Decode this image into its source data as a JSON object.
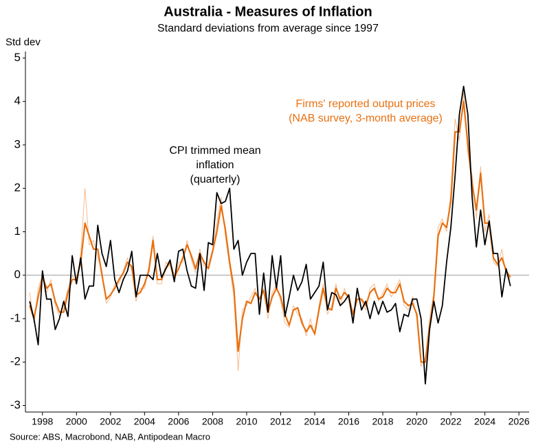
{
  "chart_data": {
    "type": "line",
    "title": "Australia - Measures of Inflation",
    "subtitle": "Standard deviations from average since 1997",
    "y_label": "Std dev",
    "source": "Source: ABS, Macrobond, NAB, Antipodean Macro",
    "xlim": [
      1997,
      2026.6
    ],
    "xticks": [
      1998,
      2000,
      2002,
      2004,
      2006,
      2008,
      2010,
      2012,
      2014,
      2016,
      2018,
      2020,
      2022,
      2024,
      2026
    ],
    "ylim": [
      -3.15,
      5.15
    ],
    "yticks": [
      -3,
      -2,
      -1,
      0,
      1,
      2,
      3,
      4,
      5
    ],
    "reference_line": 0,
    "x": [
      1997.25,
      1997.5,
      1997.75,
      1998,
      1998.25,
      1998.5,
      1998.75,
      1999,
      1999.25,
      1999.5,
      1999.75,
      2000,
      2000.25,
      2000.5,
      2000.75,
      2001,
      2001.25,
      2001.5,
      2001.75,
      2002,
      2002.25,
      2002.5,
      2002.75,
      2003,
      2003.25,
      2003.5,
      2003.75,
      2004,
      2004.25,
      2004.5,
      2004.75,
      2005,
      2005.25,
      2005.5,
      2005.75,
      2006,
      2006.25,
      2006.5,
      2006.75,
      2007,
      2007.25,
      2007.5,
      2007.75,
      2008,
      2008.25,
      2008.5,
      2008.75,
      2009,
      2009.25,
      2009.5,
      2009.75,
      2010,
      2010.25,
      2010.5,
      2010.75,
      2011,
      2011.25,
      2011.5,
      2011.75,
      2012,
      2012.25,
      2012.5,
      2012.75,
      2013,
      2013.25,
      2013.5,
      2013.75,
      2014,
      2014.25,
      2014.5,
      2014.75,
      2015,
      2015.25,
      2015.5,
      2015.75,
      2016,
      2016.25,
      2016.5,
      2016.75,
      2017,
      2017.25,
      2017.5,
      2017.75,
      2018,
      2018.25,
      2018.5,
      2018.75,
      2019,
      2019.25,
      2019.5,
      2019.75,
      2020,
      2020.25,
      2020.5,
      2020.75,
      2021,
      2021.25,
      2021.5,
      2021.75,
      2022,
      2022.25,
      2022.5,
      2022.75,
      2023,
      2023.25,
      2023.5,
      2023.75,
      2024,
      2024.25,
      2024.5,
      2024.75,
      2025,
      2025.25,
      2025.5
    ],
    "series": [
      {
        "color": "#f6b98a",
        "width": 1,
        "values": [
          -0.4,
          -1.1,
          -0.3,
          0.0,
          -0.4,
          -0.1,
          -0.7,
          -0.95,
          -0.7,
          -0.3,
          0.0,
          -0.2,
          0.5,
          2.0,
          0.7,
          0.8,
          0.4,
          0.1,
          -0.65,
          -0.5,
          -0.2,
          -0.2,
          0.1,
          0.4,
          0.1,
          -0.6,
          -0.3,
          -0.3,
          0.2,
          0.9,
          -0.2,
          -0.2,
          0.3,
          0.2,
          -0.1,
          0.3,
          0.3,
          0.8,
          0.35,
          0.05,
          0.6,
          0.2,
          0.25,
          0.6,
          1.2,
          1.8,
          0.9,
          0.2,
          -0.5,
          -2.2,
          -0.8,
          -0.7,
          -0.5,
          -0.3,
          -0.7,
          -0.3,
          -1.0,
          -0.4,
          -0.2,
          -0.6,
          -1.1,
          -1.2,
          -0.7,
          -0.9,
          -1.0,
          -1.4,
          -1.0,
          -1.4,
          -0.7,
          -0.2,
          -0.9,
          -0.7,
          -0.2,
          -0.7,
          -0.3,
          -0.6,
          -1.0,
          -0.4,
          -0.6,
          -0.8,
          -0.3,
          -0.2,
          -0.6,
          -0.4,
          -0.2,
          -0.5,
          -0.3,
          -0.1,
          -0.7,
          -0.8,
          -0.5,
          -1.0,
          -2.1,
          -1.9,
          -1.0,
          -0.4,
          1.1,
          1.3,
          1.0,
          1.9,
          3.6,
          3.1,
          4.2,
          2.8,
          2.3,
          1.3,
          2.5,
          1.0,
          1.4,
          0.3,
          0.2,
          0.6,
          0.0,
          -0.1
        ]
      },
      {
        "color": "#e8700f",
        "width": 2.2,
        "values": [
          -0.7,
          -1.0,
          -0.5,
          -0.05,
          -0.3,
          -0.2,
          -0.6,
          -0.85,
          -0.85,
          -0.4,
          -0.1,
          -0.1,
          0.3,
          1.2,
          0.9,
          0.6,
          0.6,
          0.0,
          -0.55,
          -0.45,
          -0.3,
          -0.1,
          0.05,
          0.3,
          0.2,
          -0.45,
          -0.4,
          -0.2,
          0.1,
          0.8,
          -0.1,
          -0.1,
          0.15,
          0.3,
          -0.05,
          0.15,
          0.4,
          0.7,
          0.45,
          0.15,
          0.5,
          0.3,
          0.15,
          0.55,
          1.0,
          1.6,
          1.05,
          0.3,
          -0.3,
          -1.75,
          -1.0,
          -0.6,
          -0.65,
          -0.4,
          -0.55,
          -0.35,
          -0.85,
          -0.5,
          -0.3,
          -0.5,
          -0.9,
          -1.15,
          -0.8,
          -0.75,
          -1.1,
          -1.3,
          -1.15,
          -1.35,
          -0.8,
          -0.3,
          -0.75,
          -0.8,
          -0.3,
          -0.55,
          -0.4,
          -0.5,
          -0.9,
          -0.55,
          -0.55,
          -0.7,
          -0.4,
          -0.3,
          -0.55,
          -0.5,
          -0.3,
          -0.4,
          -0.4,
          -0.2,
          -0.6,
          -0.7,
          -0.65,
          -0.9,
          -2.0,
          -2.0,
          -1.2,
          -0.5,
          0.9,
          1.2,
          1.1,
          1.7,
          3.3,
          3.3,
          4.0,
          3.0,
          2.1,
          1.5,
          2.35,
          1.2,
          1.2,
          0.4,
          0.25,
          0.4,
          0.1,
          -0.05
        ]
      },
      {
        "color": "#000000",
        "width": 1.8,
        "values": [
          -0.6,
          -1.0,
          -1.6,
          0.1,
          -0.55,
          -0.55,
          -1.25,
          -1.0,
          -0.6,
          -0.95,
          0.45,
          -0.2,
          0.4,
          -0.55,
          -0.25,
          -0.25,
          1.15,
          0.5,
          0.2,
          0.8,
          -0.1,
          -0.4,
          -0.1,
          0.1,
          0.55,
          -0.5,
          0.0,
          0.0,
          0.0,
          -0.1,
          0.5,
          -0.05,
          0.15,
          0.35,
          -0.15,
          0.55,
          0.6,
          0.1,
          -0.25,
          -0.3,
          0.5,
          -0.35,
          0.75,
          0.7,
          1.9,
          1.65,
          1.7,
          2.0,
          0.6,
          0.8,
          0.0,
          0.3,
          0.5,
          0.5,
          -0.9,
          0.05,
          -0.85,
          0.45,
          -0.3,
          0.45,
          -0.95,
          -0.5,
          0.0,
          -0.35,
          -0.15,
          0.25,
          -0.55,
          -0.4,
          -0.25,
          0.3,
          -0.8,
          -0.4,
          -0.45,
          -0.7,
          -0.6,
          -0.45,
          -1.1,
          -0.3,
          -0.8,
          -0.6,
          -1.0,
          -0.6,
          -0.9,
          -0.6,
          -0.85,
          -0.8,
          -0.65,
          -1.3,
          -0.9,
          -0.95,
          -0.55,
          -0.55,
          -1.0,
          -2.5,
          -1.25,
          -0.6,
          -1.1,
          -0.7,
          0.3,
          1.1,
          2.3,
          3.7,
          4.35,
          3.7,
          1.8,
          0.65,
          1.5,
          0.7,
          1.25,
          0.5,
          0.5,
          -0.5,
          0.15,
          -0.25
        ]
      }
    ],
    "annotations": [
      {
        "lines": [
          "CPI trimmed mean",
          "inflation",
          "(quarterly)"
        ],
        "color": "#000000"
      },
      {
        "lines": [
          "Firms' reported output prices",
          "(NAB survey, 3-month average)"
        ],
        "color": "#e8700f"
      }
    ]
  }
}
